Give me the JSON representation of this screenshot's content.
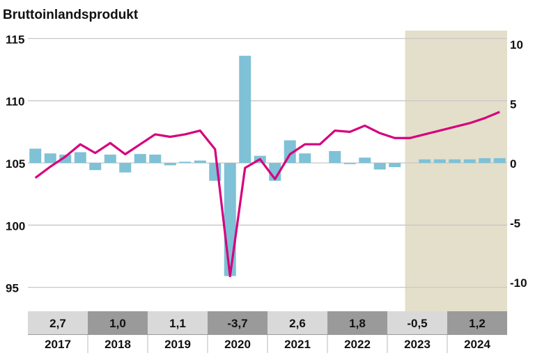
{
  "chart_data": {
    "type": "bar+line",
    "title": "Bruttoinlandsprodukt",
    "left_axis": {
      "ticks": [
        "115",
        "110",
        "105",
        "100",
        "95"
      ],
      "range": [
        93,
        116
      ]
    },
    "right_axis": {
      "ticks": [
        "10",
        "5",
        "0",
        "-5",
        "-10"
      ],
      "range": [
        -11,
        11
      ]
    },
    "grid": true,
    "forecast_shaded_from": "2023Q2",
    "quarters": [
      "2017Q1",
      "2017Q2",
      "2017Q3",
      "2017Q4",
      "2018Q1",
      "2018Q2",
      "2018Q3",
      "2018Q4",
      "2019Q1",
      "2019Q2",
      "2019Q3",
      "2019Q4",
      "2020Q1",
      "2020Q2",
      "2020Q3",
      "2020Q4",
      "2021Q1",
      "2021Q2",
      "2021Q3",
      "2021Q4",
      "2022Q1",
      "2022Q2",
      "2022Q3",
      "2022Q4",
      "2023Q1",
      "2023Q2",
      "2023Q3",
      "2023Q4",
      "2024Q1",
      "2024Q2",
      "2024Q3",
      "2024Q4"
    ],
    "bars_right_axis": [
      1.2,
      0.8,
      0.7,
      0.9,
      -0.6,
      0.7,
      -0.8,
      0.75,
      0.7,
      -0.2,
      0.1,
      0.2,
      -1.5,
      -9.5,
      9.0,
      0.6,
      -1.5,
      1.9,
      0.8,
      0.0,
      1.0,
      -0.1,
      0.45,
      -0.55,
      -0.35,
      0.0,
      0.3,
      0.3,
      0.3,
      0.3,
      0.4,
      0.4
    ],
    "line_left_axis": [
      103.8,
      104.7,
      105.5,
      106.5,
      105.8,
      106.6,
      105.7,
      106.5,
      107.3,
      107.1,
      107.3,
      107.6,
      106.1,
      95.9,
      104.6,
      105.3,
      103.7,
      105.7,
      106.5,
      106.5,
      107.6,
      107.5,
      108.0,
      107.4,
      107.0,
      107.0,
      107.3,
      107.6,
      107.9,
      108.2,
      108.6,
      109.1
    ],
    "years": [
      "2017",
      "2018",
      "2019",
      "2020",
      "2021",
      "2022",
      "2023",
      "2024"
    ],
    "annual_values": [
      "2,7",
      "1,0",
      "1,1",
      "-3,7",
      "2,6",
      "1,8",
      "-0,5",
      "1,2"
    ],
    "colors": {
      "bars": "#7fc1d6",
      "line": "#d6007d",
      "forecast": "#e3dfca",
      "cell_light": "#d9d9d9",
      "cell_dark": "#9a9a9a",
      "grid": "#c8c8c8"
    }
  }
}
